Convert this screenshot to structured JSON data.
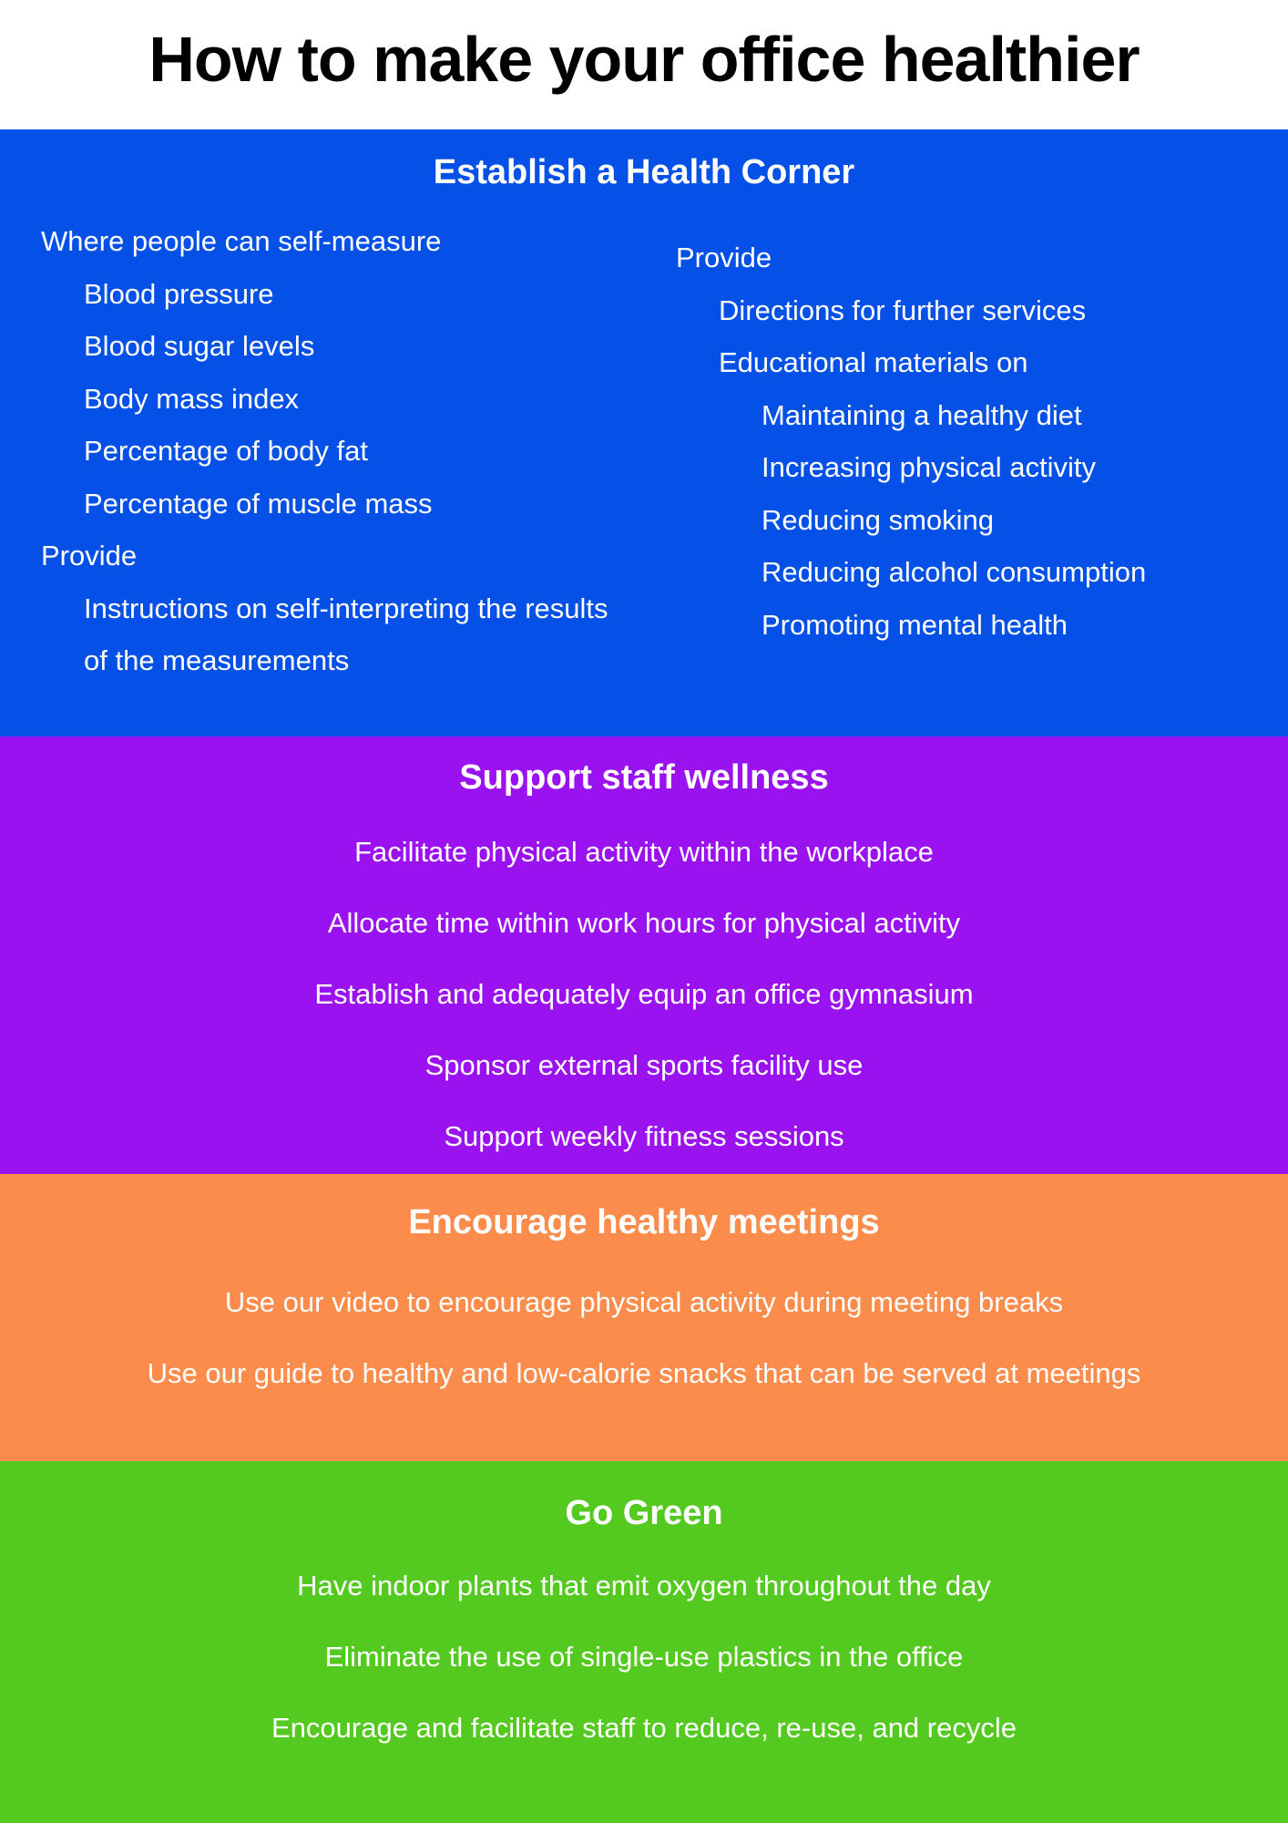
{
  "page": {
    "title": "How to make your office healthier"
  },
  "colors": {
    "section_blue": "#0551E8",
    "section_purple": "#9B12F0",
    "section_orange": "#FB8C4C",
    "section_green": "#54CA20",
    "section_text": "#FFFFFF",
    "title_text": "#000000"
  },
  "sections": [
    {
      "heading": "Establish a Health Corner",
      "left_column": [
        {
          "indent": 0,
          "text": "Where people can self-measure"
        },
        {
          "indent": 1,
          "text": "Blood pressure"
        },
        {
          "indent": 1,
          "text": "Blood sugar levels"
        },
        {
          "indent": 1,
          "text": "Body mass index"
        },
        {
          "indent": 1,
          "text": "Percentage of body fat"
        },
        {
          "indent": 1,
          "text": "Percentage of muscle mass"
        },
        {
          "indent": 0,
          "text": "Provide"
        },
        {
          "indent": 1,
          "text": "Instructions on self-interpreting the results of the measurements"
        }
      ],
      "right_column": [
        {
          "indent": 0,
          "text": "Provide"
        },
        {
          "indent": 1,
          "text": "Directions for further services"
        },
        {
          "indent": 1,
          "text": "Educational materials on"
        },
        {
          "indent": 2,
          "text": "Maintaining a healthy diet"
        },
        {
          "indent": 2,
          "text": "Increasing physical activity"
        },
        {
          "indent": 2,
          "text": "Reducing smoking"
        },
        {
          "indent": 2,
          "text": "Reducing alcohol consumption"
        },
        {
          "indent": 2,
          "text": "Promoting mental health"
        }
      ]
    },
    {
      "heading": "Support staff wellness",
      "items": [
        "Facilitate physical activity within the workplace",
        "Allocate time within work hours for physical activity",
        "Establish and adequately equip an office gymnasium",
        "Sponsor external sports facility use",
        "Support weekly fitness sessions"
      ]
    },
    {
      "heading": "Encourage healthy meetings",
      "items": [
        "Use our video to encourage physical activity during meeting breaks",
        "Use our guide to healthy and low-calorie snacks that can be served at meetings"
      ]
    },
    {
      "heading": "Go Green",
      "items": [
        "Have indoor plants that emit oxygen throughout the day",
        "Eliminate the use of single-use plastics in the office",
        "Encourage and facilitate staff to reduce, re-use, and recycle"
      ]
    }
  ]
}
